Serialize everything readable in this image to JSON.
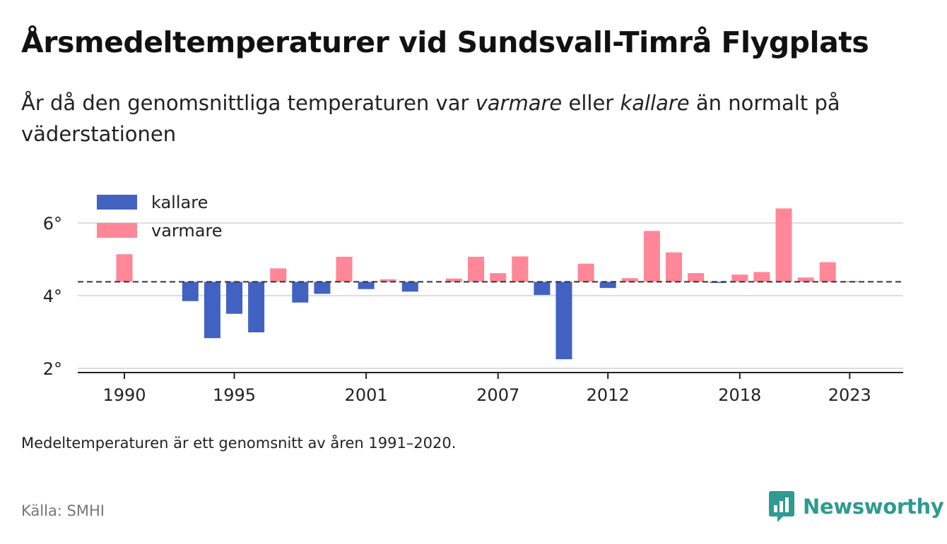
{
  "title": "Årsmedeltemperaturer vid Sundsvall-Timrå Flygplats",
  "subtitle": {
    "part1": "År då den genomsnittliga temperaturen var ",
    "warm_word": "varmare",
    "part2": " eller ",
    "cold_word": "kallare",
    "part3": " än normalt på väderstationen"
  },
  "note": "Medeltemperaturen är ett genomsnitt av åren 1991–2020.",
  "source": "Källa: SMHI",
  "brand": {
    "name": "Newsworthy",
    "icon": "newsworthy-logo-icon",
    "color": "#2f9a8f"
  },
  "colors": {
    "kallare": "#4262c2",
    "varmare": "#ff8797",
    "baseline": "#333333",
    "grid": "#dddddd"
  },
  "chart_data": {
    "type": "bar",
    "baseline": 4.38,
    "ylim": [
      2,
      6.9
    ],
    "yticks": [
      2,
      4,
      6
    ],
    "ytick_labels": [
      "2°",
      "4°",
      "6°"
    ],
    "xlim": [
      1989,
      2025
    ],
    "xticks": [
      1990,
      1995,
      2001,
      2007,
      2012,
      2018,
      2023
    ],
    "legend": {
      "position": "top-left",
      "entries": [
        "kallare",
        "varmare"
      ]
    },
    "grid": true,
    "years": [
      1990,
      1993,
      1994,
      1995,
      1996,
      1997,
      1998,
      1999,
      2000,
      2001,
      2002,
      2003,
      2005,
      2006,
      2007,
      2008,
      2009,
      2010,
      2011,
      2012,
      2013,
      2014,
      2015,
      2016,
      2017,
      2018,
      2019,
      2020,
      2021,
      2022,
      2023
    ],
    "values": [
      5.14,
      3.85,
      2.83,
      3.5,
      2.99,
      4.75,
      3.81,
      4.05,
      5.07,
      4.18,
      4.45,
      4.11,
      4.47,
      5.07,
      4.62,
      5.08,
      4.02,
      2.25,
      4.88,
      4.21,
      4.48,
      5.78,
      5.19,
      4.62,
      4.35,
      4.58,
      4.65,
      6.4,
      4.5,
      4.92,
      4.4
    ]
  }
}
